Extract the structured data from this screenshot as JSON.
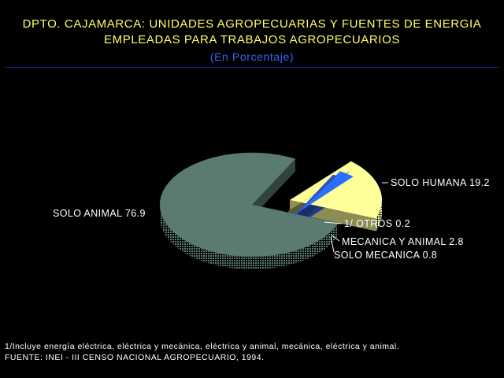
{
  "header": {
    "title_line1": "DPTO. CAJAMARCA: UNIDADES AGROPECUARIAS Y FUENTES DE ENERGIA",
    "title_line2": "EMPLEADAS PARA TRABAJOS AGROPECUARIOS",
    "subtitle": "(En Porcentaje)"
  },
  "chart_data": {
    "type": "pie",
    "style": "3d-exploded",
    "slices": [
      {
        "label": "SOLO ANIMAL",
        "value": 76.9,
        "value_text": "76.9",
        "color": "#5a7a72",
        "exploded": false
      },
      {
        "label": "SOLO HUMANA",
        "value": 19.2,
        "value_text": "19.2",
        "color": "#ffff99",
        "exploded": true
      },
      {
        "label": "1/ OTROS",
        "value": 0.2,
        "value_text": "0.2",
        "color": "#a0a060",
        "exploded": true
      },
      {
        "label": "MECANICA Y ANIMAL",
        "value": 2.8,
        "value_text": "2.8",
        "color": "#2a6fff",
        "exploded": true
      },
      {
        "label": "SOLO MECANICA",
        "value": 0.8,
        "value_text": "0.8",
        "color": "#3050c0",
        "exploded": true
      }
    ]
  },
  "footer": {
    "note": "1/Incluye energía eléctrica, eléctrica y mecánica, eléctrica y animal, mecánica, eléctrica y animal.",
    "source": "FUENTE: INEI - III CENSO NACIONAL AGROPECUARIO, 1994."
  }
}
